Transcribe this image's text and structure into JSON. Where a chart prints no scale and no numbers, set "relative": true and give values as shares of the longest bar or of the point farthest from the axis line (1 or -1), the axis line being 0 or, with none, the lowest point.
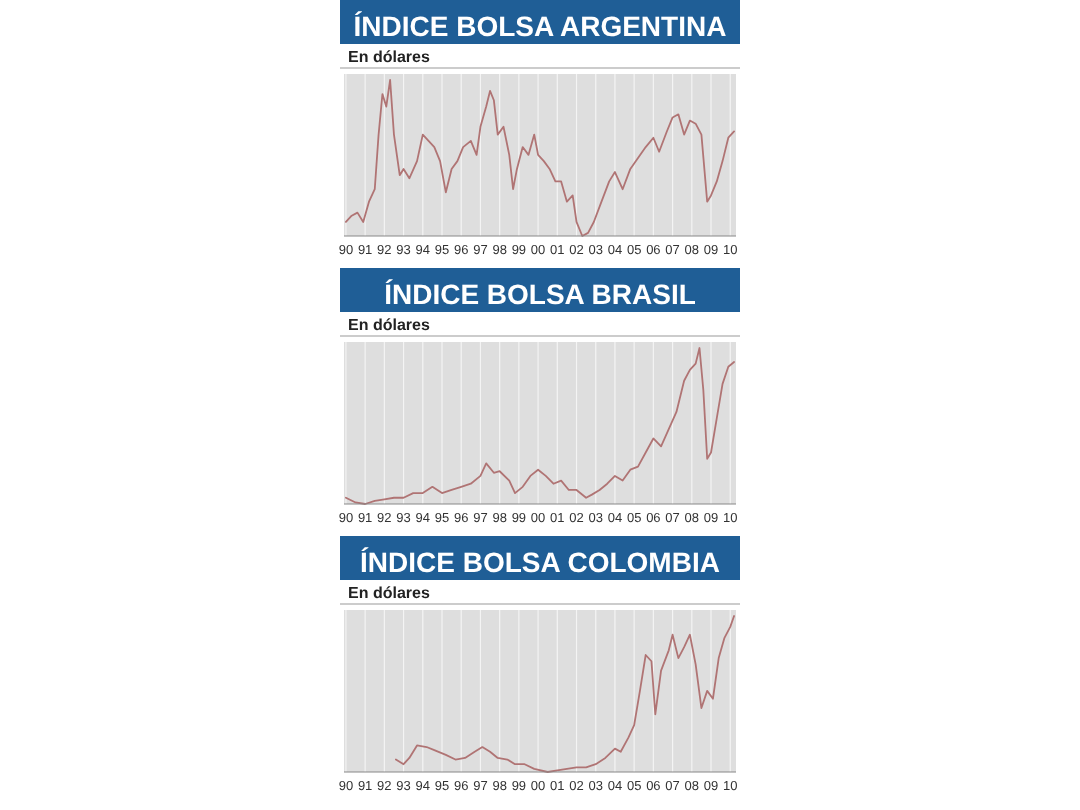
{
  "chart_data": [
    {
      "type": "line",
      "title": "ÍNDICE BOLSA ARGENTINA",
      "subtitle": "En dólares",
      "relative": true,
      "grid": "x",
      "xlim": [
        1989.9,
        2010.3
      ],
      "xticks": [
        {
          "value": 1990,
          "label": "90"
        },
        {
          "value": 1991,
          "label": "91"
        },
        {
          "value": 1992,
          "label": "92"
        },
        {
          "value": 1993,
          "label": "93"
        },
        {
          "value": 1994,
          "label": "94"
        },
        {
          "value": 1995,
          "label": "95"
        },
        {
          "value": 1996,
          "label": "96"
        },
        {
          "value": 1997,
          "label": "97"
        },
        {
          "value": 1998,
          "label": "98"
        },
        {
          "value": 1999,
          "label": "99"
        },
        {
          "value": 2000,
          "label": "00"
        },
        {
          "value": 2001,
          "label": "01"
        },
        {
          "value": 2002,
          "label": "02"
        },
        {
          "value": 2003,
          "label": "03"
        },
        {
          "value": 2004,
          "label": "04"
        },
        {
          "value": 2005,
          "label": "05"
        },
        {
          "value": 2006,
          "label": "06"
        },
        {
          "value": 2007,
          "label": "07"
        },
        {
          "value": 2008,
          "label": "08"
        },
        {
          "value": 2009,
          "label": "09"
        },
        {
          "value": 2010,
          "label": "10"
        }
      ],
      "series": [
        {
          "color": "#b07474",
          "x": [
            1990.0,
            1990.3,
            1990.6,
            1990.9,
            1991.2,
            1991.5,
            1991.7,
            1991.9,
            1992.1,
            1992.3,
            1992.5,
            1992.8,
            1993.0,
            1993.3,
            1993.7,
            1994.0,
            1994.3,
            1994.6,
            1994.9,
            1995.2,
            1995.5,
            1995.8,
            1996.1,
            1996.5,
            1996.8,
            1997.0,
            1997.3,
            1997.5,
            1997.7,
            1997.9,
            1998.2,
            1998.5,
            1998.7,
            1998.9,
            1999.2,
            1999.5,
            1999.8,
            2000.0,
            2000.3,
            2000.6,
            2000.9,
            2001.2,
            2001.5,
            2001.8,
            2002.0,
            2002.3,
            2002.6,
            2002.9,
            2003.3,
            2003.7,
            2004.0,
            2004.4,
            2004.8,
            2005.2,
            2005.6,
            2006.0,
            2006.3,
            2006.7,
            2007.0,
            2007.3,
            2007.6,
            2007.9,
            2008.2,
            2008.5,
            2008.8,
            2009.0,
            2009.3,
            2009.6,
            2009.9,
            2010.2
          ],
          "values": [
            0.09,
            0.13,
            0.15,
            0.09,
            0.22,
            0.3,
            0.65,
            0.91,
            0.83,
            1.0,
            0.65,
            0.39,
            0.43,
            0.37,
            0.48,
            0.65,
            0.61,
            0.57,
            0.48,
            0.28,
            0.43,
            0.48,
            0.57,
            0.61,
            0.52,
            0.7,
            0.83,
            0.93,
            0.87,
            0.65,
            0.7,
            0.52,
            0.3,
            0.43,
            0.57,
            0.52,
            0.65,
            0.52,
            0.48,
            0.43,
            0.35,
            0.35,
            0.22,
            0.26,
            0.09,
            0,
            0.02,
            0.09,
            0.22,
            0.35,
            0.41,
            0.3,
            0.43,
            0.5,
            0.57,
            0.63,
            0.54,
            0.67,
            0.76,
            0.78,
            0.65,
            0.74,
            0.72,
            0.65,
            0.22,
            0.26,
            0.35,
            0.48,
            0.63,
            0.67
          ]
        }
      ]
    },
    {
      "type": "line",
      "title": "ÍNDICE BOLSA BRASIL",
      "subtitle": "En dólares",
      "relative": true,
      "grid": "x",
      "xlim": [
        1989.9,
        2010.3
      ],
      "xticks": [
        {
          "value": 1990,
          "label": "90"
        },
        {
          "value": 1991,
          "label": "91"
        },
        {
          "value": 1992,
          "label": "92"
        },
        {
          "value": 1993,
          "label": "93"
        },
        {
          "value": 1994,
          "label": "94"
        },
        {
          "value": 1995,
          "label": "95"
        },
        {
          "value": 1996,
          "label": "96"
        },
        {
          "value": 1997,
          "label": "97"
        },
        {
          "value": 1998,
          "label": "98"
        },
        {
          "value": 1999,
          "label": "99"
        },
        {
          "value": 2000,
          "label": "00"
        },
        {
          "value": 2001,
          "label": "01"
        },
        {
          "value": 2002,
          "label": "02"
        },
        {
          "value": 2003,
          "label": "03"
        },
        {
          "value": 2004,
          "label": "04"
        },
        {
          "value": 2005,
          "label": "05"
        },
        {
          "value": 2006,
          "label": "06"
        },
        {
          "value": 2007,
          "label": "07"
        },
        {
          "value": 2008,
          "label": "08"
        },
        {
          "value": 2009,
          "label": "09"
        },
        {
          "value": 2010,
          "label": "10"
        }
      ],
      "series": [
        {
          "color": "#b07474",
          "x": [
            1990.0,
            1990.5,
            1991.0,
            1991.5,
            1992.0,
            1992.5,
            1993.0,
            1993.5,
            1994.0,
            1994.5,
            1995.0,
            1995.5,
            1996.0,
            1996.5,
            1997.0,
            1997.3,
            1997.7,
            1998.0,
            1998.5,
            1998.8,
            1999.2,
            1999.6,
            2000.0,
            2000.4,
            2000.8,
            2001.2,
            2001.6,
            2002.0,
            2002.5,
            2002.8,
            2003.2,
            2003.6,
            2004.0,
            2004.4,
            2004.8,
            2005.2,
            2005.6,
            2006.0,
            2006.4,
            2006.8,
            2007.2,
            2007.6,
            2007.9,
            2008.2,
            2008.4,
            2008.6,
            2008.8,
            2009.0,
            2009.3,
            2009.6,
            2009.9,
            2010.2
          ],
          "values": [
            0.04,
            0.01,
            0,
            0.02,
            0.03,
            0.04,
            0.04,
            0.07,
            0.07,
            0.11,
            0.07,
            0.09,
            0.11,
            0.13,
            0.18,
            0.26,
            0.2,
            0.21,
            0.15,
            0.07,
            0.11,
            0.18,
            0.22,
            0.18,
            0.13,
            0.15,
            0.09,
            0.09,
            0.04,
            0.06,
            0.09,
            0.13,
            0.18,
            0.15,
            0.22,
            0.24,
            0.33,
            0.42,
            0.37,
            0.48,
            0.59,
            0.79,
            0.86,
            0.9,
            1,
            0.73,
            0.29,
            0.33,
            0.55,
            0.77,
            0.88,
            0.91
          ]
        }
      ]
    },
    {
      "type": "line",
      "title": "ÍNDICE BOLSA COLOMBIA",
      "subtitle": "En dólares",
      "relative": true,
      "grid": "x",
      "xlim": [
        1989.9,
        2010.3
      ],
      "xticks": [
        {
          "value": 1990,
          "label": "90"
        },
        {
          "value": 1991,
          "label": "91"
        },
        {
          "value": 1992,
          "label": "92"
        },
        {
          "value": 1993,
          "label": "93"
        },
        {
          "value": 1994,
          "label": "94"
        },
        {
          "value": 1995,
          "label": "95"
        },
        {
          "value": 1996,
          "label": "96"
        },
        {
          "value": 1997,
          "label": "97"
        },
        {
          "value": 1998,
          "label": "98"
        },
        {
          "value": 1999,
          "label": "99"
        },
        {
          "value": 2000,
          "label": "00"
        },
        {
          "value": 2001,
          "label": "01"
        },
        {
          "value": 2002,
          "label": "02"
        },
        {
          "value": 2003,
          "label": "03"
        },
        {
          "value": 2004,
          "label": "04"
        },
        {
          "value": 2005,
          "label": "05"
        },
        {
          "value": 2006,
          "label": "06"
        },
        {
          "value": 2007,
          "label": "07"
        },
        {
          "value": 2008,
          "label": "08"
        },
        {
          "value": 2009,
          "label": "09"
        },
        {
          "value": 2010,
          "label": "10"
        }
      ],
      "series": [
        {
          "color": "#b07474",
          "x": [
            1992.6,
            1993.0,
            1993.3,
            1993.7,
            1994.2,
            1994.6,
            1995.2,
            1995.7,
            1996.2,
            1996.7,
            1997.1,
            1997.5,
            1997.9,
            1998.4,
            1998.8,
            1999.3,
            1999.8,
            2000.5,
            2001.0,
            2001.5,
            2002.0,
            2002.5,
            2003.0,
            2003.5,
            2004.0,
            2004.3,
            2004.7,
            2005.0,
            2005.3,
            2005.6,
            2005.9,
            2006.1,
            2006.4,
            2006.8,
            2007.0,
            2007.3,
            2007.6,
            2007.9,
            2008.2,
            2008.5,
            2008.8,
            2009.1,
            2009.4,
            2009.7,
            2010.0,
            2010.2
          ],
          "values": [
            0.08,
            0.05,
            0.09,
            0.17,
            0.16,
            0.14,
            0.11,
            0.08,
            0.09,
            0.13,
            0.16,
            0.13,
            0.09,
            0.08,
            0.05,
            0.05,
            0.02,
            0,
            0.01,
            0.02,
            0.03,
            0.03,
            0.05,
            0.09,
            0.15,
            0.13,
            0.22,
            0.3,
            0.52,
            0.75,
            0.71,
            0.37,
            0.65,
            0.78,
            0.88,
            0.73,
            0.8,
            0.88,
            0.69,
            0.41,
            0.52,
            0.47,
            0.73,
            0.86,
            0.93,
            1
          ]
        }
      ]
    }
  ]
}
